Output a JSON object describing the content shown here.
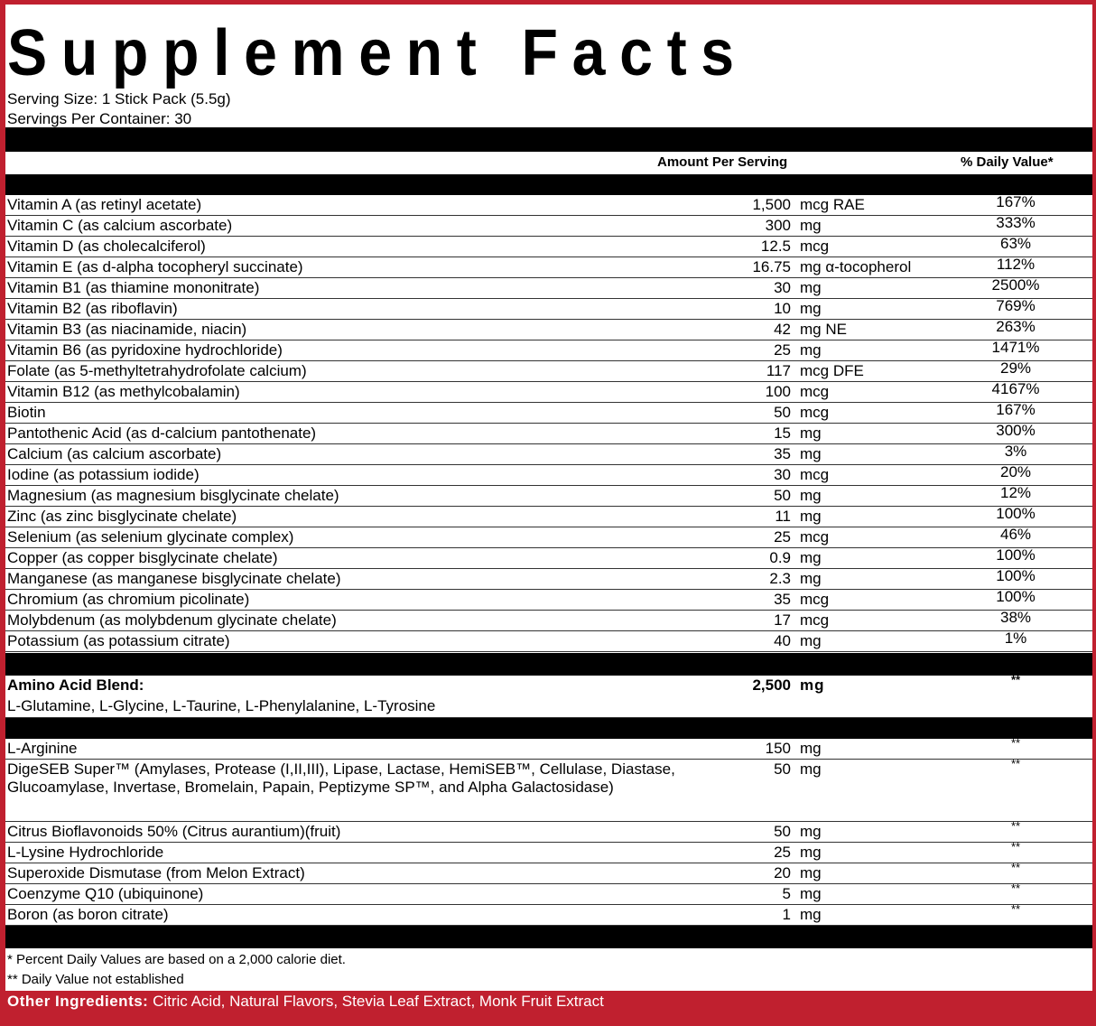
{
  "title": "Supplement Facts",
  "serving_size": "Serving Size: 1 Stick Pack (5.5g)",
  "servings_per_container": "Servings Per Container: 30",
  "header": {
    "amount": "Amount Per Serving",
    "dv": "% Daily Value*"
  },
  "vitamins": [
    {
      "name": "Vitamin A (as retinyl acetate)",
      "amount": "1,500",
      "unit": "mcg RAE",
      "dv": "167%"
    },
    {
      "name": "Vitamin C (as calcium ascorbate)",
      "amount": "300",
      "unit": "mg",
      "dv": "333%"
    },
    {
      "name": "Vitamin D (as cholecalciferol)",
      "amount": "12.5",
      "unit": "mcg",
      "dv": "63%"
    },
    {
      "name": "Vitamin E (as d-alpha tocopheryl succinate)",
      "amount": "16.75",
      "unit": "mg α-tocopherol",
      "dv": "112%"
    },
    {
      "name": "Vitamin B1 (as thiamine mononitrate)",
      "amount": "30",
      "unit": "mg",
      "dv": "2500%"
    },
    {
      "name": "Vitamin B2 (as riboflavin)",
      "amount": "10",
      "unit": "mg",
      "dv": "769%"
    },
    {
      "name": "Vitamin B3 (as niacinamide, niacin)",
      "amount": "42",
      "unit": "mg NE",
      "dv": "263%"
    },
    {
      "name": "Vitamin B6 (as pyridoxine hydrochloride)",
      "amount": "25",
      "unit": "mg",
      "dv": "1471%"
    },
    {
      "name": "Folate (as 5-methyltetrahydrofolate calcium)",
      "amount": "117",
      "unit": "mcg DFE",
      "dv": "29%"
    },
    {
      "name": "Vitamin B12 (as methylcobalamin)",
      "amount": "100",
      "unit": "mcg",
      "dv": "4167%"
    },
    {
      "name": "Biotin",
      "amount": "50",
      "unit": "mcg",
      "dv": "167%"
    },
    {
      "name": "Pantothenic Acid (as d-calcium pantothenate)",
      "amount": "15",
      "unit": "mg",
      "dv": "300%"
    },
    {
      "name": "Calcium (as calcium ascorbate)",
      "amount": "35",
      "unit": "mg",
      "dv": "3%"
    },
    {
      "name": "Iodine (as potassium iodide)",
      "amount": "30",
      "unit": "mcg",
      "dv": "20%"
    },
    {
      "name": "Magnesium (as magnesium bisglycinate chelate)",
      "amount": "50",
      "unit": "mg",
      "dv": "12%"
    },
    {
      "name": "Zinc (as zinc bisglycinate chelate)",
      "amount": "11",
      "unit": "mg",
      "dv": "100%"
    },
    {
      "name": "Selenium (as selenium glycinate complex)",
      "amount": "25",
      "unit": "mcg",
      "dv": "46%"
    },
    {
      "name": "Copper (as copper bisglycinate chelate)",
      "amount": "0.9",
      "unit": "mg",
      "dv": "100%"
    },
    {
      "name": "Manganese (as manganese bisglycinate chelate)",
      "amount": "2.3",
      "unit": "mg",
      "dv": "100%"
    },
    {
      "name": "Chromium (as chromium picolinate)",
      "amount": "35",
      "unit": "mcg",
      "dv": "100%"
    },
    {
      "name": "Molybdenum (as molybdenum glycinate chelate)",
      "amount": "17",
      "unit": "mcg",
      "dv": "38%"
    },
    {
      "name": "Potassium (as potassium citrate)",
      "amount": "40",
      "unit": "mg",
      "dv": "1%"
    }
  ],
  "blend": {
    "name": "Amino Acid Blend:",
    "amount": "2,500",
    "unit": "mg",
    "dv": "**",
    "ingredients": "L-Glutamine, L-Glycine, L-Taurine, L-Phenylalanine, L-Tyrosine"
  },
  "others": [
    {
      "name": "L-Arginine",
      "amount": "150",
      "unit": "mg",
      "dv": "**",
      "lines": 1
    },
    {
      "name": "DigeSEB Super™ (Amylases, Protease (I,II,III), Lipase, Lactase, HemiSEB™, Cellulase, Diastase, Glucoamylase, Invertase, Bromelain, Papain, Peptizyme SP™, and Alpha Galactosidase)",
      "amount": "50",
      "unit": "mg",
      "dv": "**",
      "lines": 3
    },
    {
      "name": "Citrus Bioflavonoids 50% (Citrus aurantium)(fruit)",
      "amount": "50",
      "unit": "mg",
      "dv": "**",
      "lines": 1
    },
    {
      "name": "L-Lysine Hydrochloride",
      "amount": "25",
      "unit": "mg",
      "dv": "**",
      "lines": 1
    },
    {
      "name": "Superoxide Dismutase (from Melon Extract)",
      "amount": "20",
      "unit": "mg",
      "dv": "**",
      "lines": 1
    },
    {
      "name": "Coenzyme Q10 (ubiquinone)",
      "amount": "5",
      "unit": "mg",
      "dv": "**",
      "lines": 1
    },
    {
      "name": "Boron (as boron citrate)",
      "amount": "1",
      "unit": "mg",
      "dv": "**",
      "lines": 1
    }
  ],
  "footnotes": [
    "* Percent Daily Values are based on a 2,000 calorie diet.",
    "** Daily Value not established"
  ],
  "other_ingredients": {
    "label": "Other Ingredients:",
    "text": " Citric Acid, Natural Flavors, Stevia Leaf Extract, Monk Fruit Extract"
  },
  "colors": {
    "background_red": "#c0202f",
    "panel": "#ffffff",
    "bars": "#000000"
  }
}
